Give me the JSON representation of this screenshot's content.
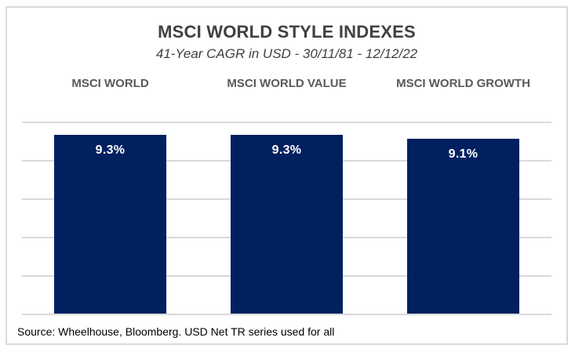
{
  "title": "MSCI WORLD STYLE INDEXES",
  "subtitle": "41-Year CAGR in USD - 30/11/81 - 12/12/22",
  "source_note": "Source: Wheelhouse, Bloomberg. USD Net TR series used for all",
  "colors": {
    "bar": "#002060",
    "gridline": "#d9d9d9",
    "card_border": "#d9d9d9",
    "title_text": "#404040",
    "header_text": "#595959",
    "bar_label_text": "#ffffff"
  },
  "chart_data": {
    "type": "bar",
    "title": "MSCI WORLD STYLE INDEXES",
    "subtitle": "41-Year CAGR in USD - 30/11/81 - 12/12/22",
    "categories": [
      "MSCI WORLD",
      "MSCI WORLD VALUE",
      "MSCI WORLD GROWTH"
    ],
    "values": [
      9.3,
      9.3,
      9.1
    ],
    "value_labels": [
      "9.3%",
      "9.3%",
      "9.1%"
    ],
    "xlabel": "",
    "ylabel": "",
    "ylim": [
      0,
      10
    ],
    "gridline_step": 2,
    "grid": true,
    "y_tick_labels_visible": false,
    "legend": "none",
    "data_label_position": "inside-end",
    "footnote": "Source: Wheelhouse, Bloomberg. USD Net TR series used for all"
  }
}
